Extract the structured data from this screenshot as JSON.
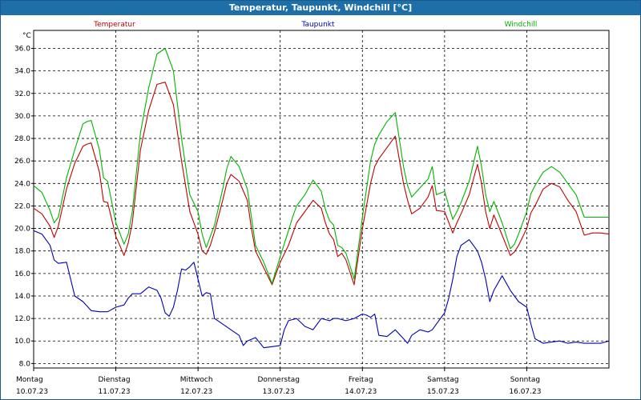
{
  "window": {
    "title": "Temperatur, Taupunkt, Windchill [°C]"
  },
  "chart_data": {
    "type": "line",
    "title": "Temperatur, Taupunkt, Windchill [°C]",
    "ylabel": "°C",
    "ylim": [
      7.6,
      37.6
    ],
    "yticks": [
      8.0,
      10.0,
      12.0,
      14.0,
      16.0,
      18.0,
      20.0,
      22.0,
      24.0,
      26.0,
      28.0,
      30.0,
      32.0,
      34.0,
      36.0
    ],
    "ytick_labels": [
      "8.0",
      "10.0",
      "12.0",
      "14.0",
      "16.0",
      "18.0",
      "20.0",
      "22.0",
      "24.0",
      "26.0",
      "28.0",
      "30.0",
      "32.0",
      "34.0",
      "36.0"
    ],
    "xlim": [
      0,
      7
    ],
    "xticks": [
      {
        "day": "Montag",
        "date": "10.07.23"
      },
      {
        "day": "Dienstag",
        "date": "11.07.23"
      },
      {
        "day": "Mittwoch",
        "date": "12.07.23"
      },
      {
        "day": "Donnerstag",
        "date": "13.07.23"
      },
      {
        "day": "Freitag",
        "date": "14.07.23"
      },
      {
        "day": "Samstag",
        "date": "15.07.23"
      },
      {
        "day": "Sonntag",
        "date": "16.07.23"
      }
    ],
    "grid": true,
    "legend_position": "top",
    "series": [
      {
        "name": "Temperatur",
        "color": "#c00000",
        "x": [
          0,
          0.1,
          0.2,
          0.25,
          0.3,
          0.4,
          0.5,
          0.6,
          0.65,
          0.7,
          0.8,
          0.85,
          0.9,
          1.0,
          1.1,
          1.15,
          1.2,
          1.3,
          1.4,
          1.5,
          1.6,
          1.7,
          1.8,
          1.9,
          2.0,
          2.05,
          2.1,
          2.15,
          2.2,
          2.3,
          2.35,
          2.4,
          2.5,
          2.6,
          2.65,
          2.7,
          2.8,
          2.9,
          3.0,
          3.1,
          3.15,
          3.2,
          3.3,
          3.4,
          3.5,
          3.55,
          3.6,
          3.65,
          3.7,
          3.75,
          3.8,
          3.9,
          4.0,
          4.1,
          4.15,
          4.2,
          4.3,
          4.4,
          4.5,
          4.55,
          4.6,
          4.7,
          4.8,
          4.85,
          4.9,
          5.0,
          5.1,
          5.15,
          5.2,
          5.3,
          5.4,
          5.45,
          5.5,
          5.55,
          5.6,
          5.7,
          5.8,
          5.85,
          5.9,
          6.0,
          6.05,
          6.1,
          6.2,
          6.3,
          6.4,
          6.5,
          6.6,
          6.7,
          6.8,
          6.9,
          7.0
        ],
        "y": [
          21.8,
          21.3,
          20.2,
          19.2,
          20.2,
          23.5,
          25.8,
          27.3,
          27.5,
          27.6,
          25.0,
          22.4,
          22.3,
          19.3,
          17.6,
          18.7,
          20.5,
          27.0,
          30.5,
          32.8,
          33.0,
          31.0,
          26.0,
          21.5,
          19.5,
          18.0,
          17.7,
          18.5,
          19.7,
          22.5,
          24.0,
          24.8,
          24.2,
          22.5,
          20.0,
          18.0,
          16.5,
          15.0,
          17.0,
          18.5,
          19.5,
          20.5,
          21.5,
          22.5,
          21.8,
          20.5,
          19.5,
          19.0,
          17.5,
          17.8,
          17.2,
          15.0,
          20.0,
          24.0,
          25.5,
          26.2,
          27.2,
          28.2,
          24.0,
          22.5,
          21.3,
          21.8,
          22.8,
          23.8,
          21.6,
          21.5,
          19.6,
          20.5,
          21.3,
          23.0,
          25.7,
          24.0,
          21.5,
          20.0,
          21.2,
          19.4,
          17.6,
          17.9,
          18.5,
          20.0,
          21.4,
          22.0,
          23.5,
          24.0,
          23.7,
          22.5,
          21.5,
          19.4,
          19.6,
          19.6,
          19.5
        ]
      },
      {
        "name": "Taupunkt",
        "color": "#0000b4",
        "x": [
          0,
          0.1,
          0.2,
          0.25,
          0.3,
          0.4,
          0.5,
          0.6,
          0.7,
          0.8,
          0.9,
          1.0,
          1.1,
          1.15,
          1.2,
          1.3,
          1.4,
          1.5,
          1.55,
          1.6,
          1.65,
          1.7,
          1.75,
          1.8,
          1.85,
          1.9,
          1.95,
          2.0,
          2.05,
          2.1,
          2.15,
          2.2,
          2.3,
          2.4,
          2.5,
          2.55,
          2.6,
          2.7,
          2.8,
          2.9,
          3.0,
          3.05,
          3.1,
          3.2,
          3.3,
          3.4,
          3.5,
          3.6,
          3.65,
          3.7,
          3.8,
          3.9,
          4.0,
          4.05,
          4.1,
          4.15,
          4.2,
          4.3,
          4.4,
          4.5,
          4.55,
          4.6,
          4.7,
          4.8,
          4.85,
          4.9,
          5.0,
          5.05,
          5.1,
          5.15,
          5.2,
          5.3,
          5.4,
          5.45,
          5.5,
          5.55,
          5.6,
          5.7,
          5.8,
          5.85,
          5.9,
          6.0,
          6.05,
          6.1,
          6.2,
          6.3,
          6.4,
          6.5,
          6.6,
          6.7,
          6.8,
          6.9,
          7.0
        ],
        "y": [
          19.8,
          19.5,
          18.5,
          17.2,
          16.9,
          17.0,
          14.0,
          13.5,
          12.7,
          12.6,
          12.6,
          13.0,
          13.2,
          13.8,
          14.2,
          14.2,
          14.8,
          14.5,
          13.8,
          12.5,
          12.2,
          13.0,
          14.5,
          16.4,
          16.3,
          16.6,
          17.0,
          15.5,
          14.0,
          14.3,
          14.2,
          12.0,
          11.5,
          11.0,
          10.5,
          9.6,
          10.0,
          10.3,
          9.4,
          9.5,
          9.6,
          11.0,
          11.8,
          12.0,
          11.3,
          11.0,
          12.0,
          11.8,
          12.0,
          12.0,
          11.8,
          12.0,
          12.4,
          12.3,
          12.1,
          12.4,
          10.5,
          10.4,
          11.0,
          10.2,
          9.8,
          10.5,
          11.0,
          10.8,
          11.0,
          11.5,
          12.5,
          13.8,
          15.5,
          17.5,
          18.5,
          19.0,
          18.0,
          17.0,
          15.5,
          13.5,
          14.5,
          15.8,
          14.5,
          14.0,
          13.5,
          13.0,
          11.5,
          10.2,
          9.8,
          9.9,
          10.0,
          9.8,
          9.9,
          9.8,
          9.8,
          9.8,
          10.0
        ]
      },
      {
        "name": "Windchill",
        "color": "#00b400",
        "x": [
          0,
          0.1,
          0.2,
          0.25,
          0.3,
          0.4,
          0.5,
          0.6,
          0.65,
          0.7,
          0.8,
          0.85,
          0.9,
          1.0,
          1.1,
          1.15,
          1.2,
          1.3,
          1.4,
          1.5,
          1.6,
          1.7,
          1.8,
          1.9,
          2.0,
          2.05,
          2.1,
          2.15,
          2.2,
          2.3,
          2.35,
          2.4,
          2.5,
          2.6,
          2.65,
          2.7,
          2.8,
          2.9,
          3.0,
          3.1,
          3.15,
          3.2,
          3.3,
          3.4,
          3.5,
          3.55,
          3.6,
          3.65,
          3.7,
          3.75,
          3.8,
          3.9,
          4.0,
          4.1,
          4.15,
          4.2,
          4.3,
          4.4,
          4.5,
          4.55,
          4.6,
          4.7,
          4.8,
          4.85,
          4.9,
          5.0,
          5.1,
          5.15,
          5.2,
          5.3,
          5.4,
          5.45,
          5.5,
          5.55,
          5.6,
          5.7,
          5.8,
          5.85,
          5.9,
          6.0,
          6.05,
          6.1,
          6.2,
          6.3,
          6.4,
          6.5,
          6.6,
          6.7,
          6.8,
          6.9,
          7.0
        ],
        "y": [
          23.8,
          23.2,
          21.6,
          20.5,
          21.0,
          24.5,
          27.0,
          29.3,
          29.5,
          29.6,
          27.0,
          24.5,
          24.2,
          20.5,
          18.6,
          19.5,
          21.5,
          28.5,
          32.5,
          35.5,
          36.0,
          34.0,
          28.0,
          23.0,
          21.5,
          19.5,
          18.3,
          19.3,
          20.3,
          23.5,
          25.3,
          26.4,
          25.5,
          23.5,
          21.0,
          18.5,
          17.0,
          15.1,
          17.5,
          19.8,
          21.0,
          22.0,
          23.0,
          24.3,
          23.3,
          21.7,
          20.7,
          20.3,
          18.5,
          18.3,
          17.8,
          15.5,
          21.0,
          26.0,
          27.5,
          28.3,
          29.5,
          30.3,
          25.5,
          23.8,
          22.8,
          23.6,
          24.4,
          25.5,
          23.0,
          23.3,
          20.8,
          21.5,
          22.3,
          24.2,
          27.3,
          25.5,
          23.0,
          21.5,
          22.4,
          20.5,
          18.2,
          18.6,
          19.5,
          21.5,
          23.1,
          23.8,
          25.0,
          25.5,
          25.0,
          24.0,
          23.0,
          21.0,
          21.0,
          21.0,
          21.0
        ]
      }
    ]
  }
}
